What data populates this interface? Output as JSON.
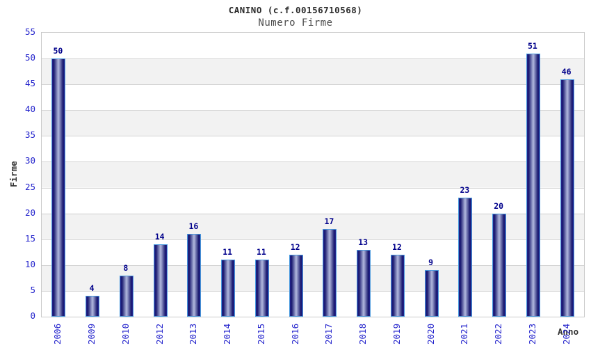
{
  "chart_data": {
    "type": "bar",
    "title": "CANINO (c.f.00156710568)",
    "subtitle": "Numero Firme",
    "xlabel": "Anno",
    "ylabel": "Firme",
    "categories": [
      "2006",
      "2009",
      "2010",
      "2012",
      "2013",
      "2014",
      "2015",
      "2016",
      "2017",
      "2018",
      "2019",
      "2020",
      "2021",
      "2022",
      "2023",
      "2024"
    ],
    "values": [
      50,
      4,
      8,
      14,
      16,
      11,
      11,
      12,
      17,
      13,
      12,
      9,
      23,
      20,
      51,
      46
    ],
    "ylim": [
      0,
      55
    ],
    "yticks": [
      0,
      5,
      10,
      15,
      20,
      25,
      30,
      35,
      40,
      45,
      50,
      55
    ],
    "grid": true,
    "legend": "none",
    "bar_value_labels": true,
    "colors": {
      "title": "#2b2b2b",
      "subtitle": "#4d4d4d",
      "tick_label": "#2323cc",
      "value_label": "#00008b",
      "axis_label": "#333333",
      "grid_line": "#d4d4d4",
      "band_gray": "#f2f2f2",
      "band_white": "#ffffff",
      "plot_border": "#c9c9c9",
      "bar_edge_dark": "#17176e",
      "bar_mid_dark": "#23238e",
      "bar_center_light": "#b2b9de",
      "bar_border_light_blue": "#4a9ade",
      "background": "#ffffff"
    }
  }
}
